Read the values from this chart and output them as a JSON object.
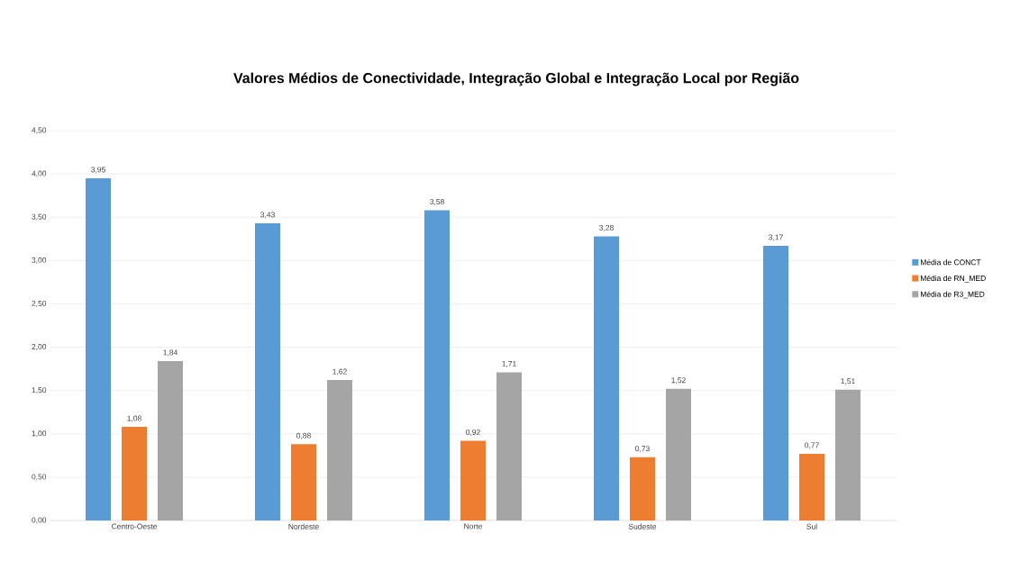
{
  "chart_data": {
    "type": "bar",
    "title": "Valores Médios de Conectividade, Integração Global e Integração Local por Região",
    "categories": [
      "Centro-Oeste",
      "Nordeste",
      "Norte",
      "Sudeste",
      "Sul"
    ],
    "series": [
      {
        "name": "Média de CONCT",
        "color": "#5b9bd5",
        "values": [
          3.95,
          3.43,
          3.58,
          3.28,
          3.17
        ],
        "value_labels": [
          "3,95",
          "3,43",
          "3,58",
          "3,28",
          "3,17"
        ]
      },
      {
        "name": "Média de RN_MED",
        "color": "#ed7d31",
        "values": [
          1.08,
          0.88,
          0.92,
          0.73,
          0.77
        ],
        "value_labels": [
          "1,08",
          "0,88",
          "0,92",
          "0,73",
          "0,77"
        ]
      },
      {
        "name": "Média de R3_MED",
        "color": "#a5a5a5",
        "values": [
          1.84,
          1.62,
          1.71,
          1.52,
          1.51
        ],
        "value_labels": [
          "1,84",
          "1,62",
          "1,71",
          "1,52",
          "1,51"
        ]
      }
    ],
    "ylim": [
      0,
      4.5
    ],
    "yticks": [
      {
        "value": 0,
        "label": "0,00"
      },
      {
        "value": 0.5,
        "label": "0,50"
      },
      {
        "value": 1,
        "label": "1,00"
      },
      {
        "value": 1.5,
        "label": "1,50"
      },
      {
        "value": 2,
        "label": "2,00"
      },
      {
        "value": 2.5,
        "label": "2,50"
      },
      {
        "value": 3,
        "label": "3,00"
      },
      {
        "value": 3.5,
        "label": "3,50"
      },
      {
        "value": 4,
        "label": "4,00"
      },
      {
        "value": 4.5,
        "label": "4,50"
      }
    ],
    "grid": "y",
    "legend": "right"
  }
}
